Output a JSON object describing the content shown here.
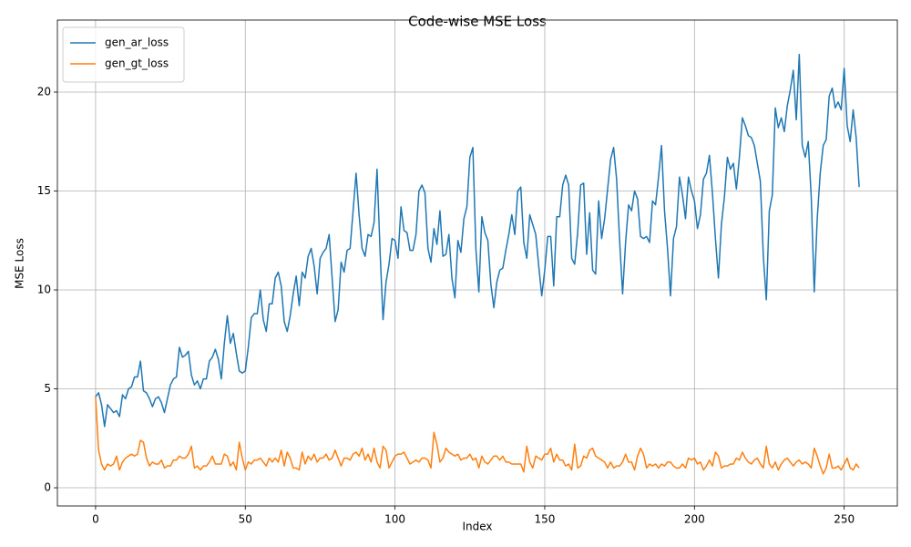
{
  "chart_data": {
    "type": "line",
    "title": "Code-wise MSE Loss",
    "xlabel": "Index",
    "ylabel": "MSE Loss",
    "x": [
      0,
      1,
      2,
      3,
      4,
      5,
      6,
      7,
      8,
      9,
      10,
      11,
      12,
      13,
      14,
      15,
      16,
      17,
      18,
      19,
      20,
      21,
      22,
      23,
      24,
      25,
      26,
      27,
      28,
      29,
      30,
      31,
      32,
      33,
      34,
      35,
      36,
      37,
      38,
      39,
      40,
      41,
      42,
      43,
      44,
      45,
      46,
      47,
      48,
      49,
      50,
      51,
      52,
      53,
      54,
      55,
      56,
      57,
      58,
      59,
      60,
      61,
      62,
      63,
      64,
      65,
      66,
      67,
      68,
      69,
      70,
      71,
      72,
      73,
      74,
      75,
      76,
      77,
      78,
      79,
      80,
      81,
      82,
      83,
      84,
      85,
      86,
      87,
      88,
      89,
      90,
      91,
      92,
      93,
      94,
      95,
      96,
      97,
      98,
      99,
      100,
      101,
      102,
      103,
      104,
      105,
      106,
      107,
      108,
      109,
      110,
      111,
      112,
      113,
      114,
      115,
      116,
      117,
      118,
      119,
      120,
      121,
      122,
      123,
      124,
      125,
      126,
      127,
      128,
      129,
      130,
      131,
      132,
      133,
      134,
      135,
      136,
      137,
      138,
      139,
      140,
      141,
      142,
      143,
      144,
      145,
      146,
      147,
      148,
      149,
      150,
      151,
      152,
      153,
      154,
      155,
      156,
      157,
      158,
      159,
      160,
      161,
      162,
      163,
      164,
      165,
      166,
      167,
      168,
      169,
      170,
      171,
      172,
      173,
      174,
      175,
      176,
      177,
      178,
      179,
      180,
      181,
      182,
      183,
      184,
      185,
      186,
      187,
      188,
      189,
      190,
      191,
      192,
      193,
      194,
      195,
      196,
      197,
      198,
      199,
      200,
      201,
      202,
      203,
      204,
      205,
      206,
      207,
      208,
      209,
      210,
      211,
      212,
      213,
      214,
      215,
      216,
      217,
      218,
      219,
      220,
      221,
      222,
      223,
      224,
      225,
      226,
      227,
      228,
      229,
      230,
      231,
      232,
      233,
      234,
      235,
      236,
      237,
      238,
      239,
      240,
      241,
      242,
      243,
      244,
      245,
      246,
      247,
      248,
      249,
      250,
      251,
      252,
      253,
      254,
      255
    ],
    "series": [
      {
        "name": "gen_ar_loss",
        "color": "#1f77b4",
        "values": [
          4.6,
          4.8,
          4.2,
          3.1,
          4.2,
          4.0,
          3.8,
          3.9,
          3.6,
          4.7,
          4.5,
          5.0,
          5.1,
          5.6,
          5.6,
          6.4,
          4.9,
          4.8,
          4.5,
          4.1,
          4.5,
          4.6,
          4.3,
          3.8,
          4.5,
          5.2,
          5.5,
          5.6,
          7.1,
          6.6,
          6.7,
          6.9,
          5.7,
          5.2,
          5.4,
          5.0,
          5.5,
          5.5,
          6.4,
          6.6,
          7.0,
          6.5,
          5.5,
          7.3,
          8.7,
          7.3,
          7.8,
          6.8,
          5.9,
          5.8,
          5.9,
          7.1,
          8.6,
          8.8,
          8.8,
          10.0,
          8.5,
          7.9,
          9.3,
          9.3,
          10.6,
          10.9,
          10.2,
          8.4,
          7.9,
          8.7,
          9.8,
          10.7,
          9.2,
          10.9,
          10.6,
          11.7,
          12.1,
          11.2,
          9.8,
          11.6,
          11.9,
          12.1,
          12.8,
          10.6,
          8.4,
          9.0,
          11.4,
          10.9,
          12.0,
          12.1,
          14.0,
          15.9,
          13.8,
          12.1,
          11.7,
          12.8,
          12.7,
          13.4,
          16.1,
          12.0,
          8.5,
          10.4,
          11.3,
          12.6,
          12.5,
          11.6,
          14.2,
          13.0,
          12.9,
          12.0,
          12.0,
          12.8,
          15.0,
          15.3,
          14.9,
          12.1,
          11.4,
          13.1,
          12.3,
          14.0,
          11.7,
          11.8,
          12.8,
          10.6,
          9.6,
          12.5,
          11.9,
          13.6,
          14.2,
          16.7,
          17.2,
          12.1,
          9.9,
          13.7,
          12.9,
          12.5,
          10.3,
          9.1,
          10.4,
          11.0,
          11.1,
          12.0,
          12.8,
          13.8,
          12.8,
          15.0,
          15.2,
          12.4,
          11.6,
          13.8,
          13.3,
          12.8,
          11.2,
          9.7,
          11.0,
          12.7,
          12.7,
          10.2,
          13.7,
          13.7,
          15.3,
          15.8,
          15.3,
          11.6,
          11.3,
          12.9,
          15.3,
          15.4,
          11.8,
          13.9,
          11.0,
          10.8,
          14.5,
          12.6,
          13.6,
          15.1,
          16.6,
          17.2,
          15.6,
          12.5,
          9.8,
          12.4,
          14.3,
          14.0,
          15.0,
          14.6,
          12.7,
          12.6,
          12.7,
          12.4,
          14.5,
          14.3,
          15.7,
          17.3,
          14.0,
          12.1,
          9.7,
          12.6,
          13.2,
          15.7,
          14.8,
          13.6,
          15.7,
          15.0,
          14.5,
          13.1,
          13.8,
          15.6,
          15.9,
          16.8,
          14.9,
          12.6,
          10.6,
          13.3,
          14.7,
          16.7,
          16.1,
          16.4,
          15.1,
          16.7,
          18.7,
          18.3,
          17.8,
          17.7,
          17.3,
          16.4,
          15.5,
          11.7,
          9.5,
          14.0,
          14.8,
          19.2,
          18.2,
          18.7,
          18.0,
          19.3,
          20.1,
          21.1,
          18.6,
          21.9,
          17.3,
          16.7,
          17.5,
          14.7,
          9.9,
          13.6,
          15.9,
          17.3,
          17.6,
          19.8,
          20.2,
          19.2,
          19.5,
          19.1,
          21.2,
          18.3,
          17.5,
          19.1,
          17.7,
          15.2
        ]
      },
      {
        "name": "gen_gt_loss",
        "color": "#ff7f0e",
        "values": [
          4.6,
          1.9,
          1.2,
          0.9,
          1.2,
          1.1,
          1.2,
          1.6,
          0.9,
          1.3,
          1.5,
          1.6,
          1.7,
          1.6,
          1.7,
          2.4,
          2.3,
          1.5,
          1.1,
          1.3,
          1.2,
          1.2,
          1.4,
          1.0,
          1.1,
          1.1,
          1.4,
          1.4,
          1.6,
          1.5,
          1.5,
          1.7,
          2.1,
          1.0,
          1.1,
          0.9,
          1.1,
          1.1,
          1.3,
          1.6,
          1.2,
          1.2,
          1.2,
          1.7,
          1.6,
          1.1,
          1.3,
          0.9,
          2.3,
          1.5,
          0.9,
          1.3,
          1.2,
          1.4,
          1.4,
          1.5,
          1.3,
          1.1,
          1.5,
          1.3,
          1.5,
          1.3,
          1.9,
          1.1,
          1.8,
          1.5,
          1.0,
          1.0,
          0.9,
          1.8,
          1.2,
          1.6,
          1.4,
          1.7,
          1.3,
          1.5,
          1.5,
          1.7,
          1.4,
          1.5,
          1.9,
          1.5,
          1.1,
          1.5,
          1.5,
          1.4,
          1.7,
          1.8,
          1.6,
          2.0,
          1.4,
          1.7,
          1.3,
          2.0,
          1.3,
          1.0,
          2.1,
          1.9,
          1.0,
          1.3,
          1.6,
          1.7,
          1.7,
          1.8,
          1.5,
          1.2,
          1.3,
          1.4,
          1.3,
          1.5,
          1.5,
          1.4,
          1.0,
          2.8,
          2.2,
          1.3,
          1.5,
          2.0,
          1.8,
          1.7,
          1.6,
          1.7,
          1.4,
          1.5,
          1.5,
          1.7,
          1.4,
          1.5,
          1.0,
          1.6,
          1.3,
          1.2,
          1.4,
          1.6,
          1.6,
          1.4,
          1.6,
          1.3,
          1.3,
          1.2,
          1.2,
          1.2,
          1.2,
          0.8,
          2.1,
          1.3,
          1.0,
          1.6,
          1.5,
          1.4,
          1.7,
          1.7,
          2.0,
          1.3,
          1.7,
          1.4,
          1.4,
          1.1,
          1.2,
          0.9,
          2.2,
          1.0,
          1.1,
          1.6,
          1.5,
          1.9,
          2.0,
          1.6,
          1.5,
          1.4,
          1.3,
          1.0,
          1.3,
          1.0,
          1.1,
          1.1,
          1.3,
          1.7,
          1.3,
          1.3,
          0.9,
          1.6,
          2.0,
          1.7,
          1.0,
          1.2,
          1.1,
          1.2,
          1.0,
          1.2,
          1.1,
          1.3,
          1.3,
          1.1,
          1.0,
          1.0,
          1.2,
          1.0,
          1.5,
          1.4,
          1.5,
          1.2,
          1.3,
          0.9,
          1.1,
          1.4,
          1.1,
          1.8,
          1.6,
          1.0,
          1.1,
          1.1,
          1.2,
          1.2,
          1.5,
          1.4,
          1.8,
          1.5,
          1.3,
          1.2,
          1.4,
          1.5,
          1.2,
          1.0,
          2.1,
          1.2,
          1.0,
          1.3,
          0.9,
          1.2,
          1.4,
          1.5,
          1.3,
          1.1,
          1.3,
          1.4,
          1.2,
          1.3,
          1.2,
          1.0,
          2.0,
          1.6,
          1.1,
          0.7,
          1.0,
          1.7,
          1.0,
          1.0,
          1.1,
          0.9,
          1.2,
          1.5,
          1.0,
          0.9,
          1.2,
          1.0
        ]
      }
    ],
    "xlim": [
      -12.75,
      267.75
    ],
    "xticks": [
      0,
      50,
      100,
      150,
      200,
      250
    ],
    "ylim": [
      -0.92,
      23.64
    ],
    "yticks": [
      0,
      5,
      10,
      15,
      20
    ],
    "grid": true,
    "legend": "upper-left"
  }
}
